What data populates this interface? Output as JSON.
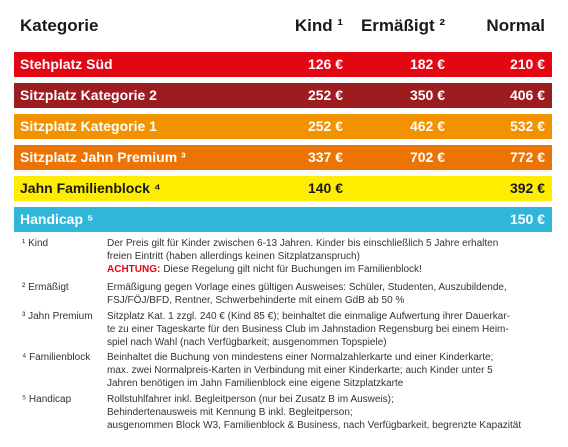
{
  "table": {
    "header": [
      "Kategorie",
      "Kind ¹",
      "Ermäßigt ²",
      "Normal"
    ],
    "rows": [
      {
        "cells": [
          "Stehplatz Süd",
          "126 €",
          "182 €",
          "210 €"
        ],
        "color": "#e30613",
        "text_color": "#ffffff"
      },
      {
        "cells": [
          "Sitzplatz Kategorie 2",
          "252 €",
          "350 €",
          "406 €"
        ],
        "color": "#9d1c20",
        "text_color": "#ffffff"
      },
      {
        "cells": [
          "Sitzplatz Kategorie 1",
          "252 €",
          "462 €",
          "532 €"
        ],
        "color": "#f39200",
        "text_color": "#ffffff"
      },
      {
        "cells": [
          "Sitzplatz Jahn Premium ³",
          "337 €",
          "702 €",
          "772 €"
        ],
        "color": "#ec7404",
        "text_color": "#ffffff"
      },
      {
        "cells": [
          "Jahn Familienblock ⁴",
          "140 €",
          null,
          "392 €"
        ],
        "color": "#ffed00",
        "text_color": "#1a1a1a"
      },
      {
        "cells": [
          "Handicap ⁵",
          null,
          null,
          "150 €"
        ],
        "color": "#2fb6d8",
        "text_color": "#ffffff"
      }
    ]
  },
  "footnotes": [
    {
      "label": "¹ Kind",
      "lines": [
        "Der Preis gilt für Kinder zwischen 6-13 Jahren. Kinder bis einschließlich 5 Jahre erhalten",
        "freien Eintritt (haben allerdings keinen Sitzplatzanspruch)"
      ],
      "warning": {
        "label": "ACHTUNG:",
        "text": "Diese Regelung gilt nicht für Buchungen im Familienblock!"
      }
    },
    {
      "label": "² Ermäßigt",
      "lines": [
        "Ermäßigung gegen Vorlage eines gültigen Ausweises: Schüler, Studenten, Auszubildende,",
        "FSJ/FÖJ/BFD, Rentner, Schwerbehinderte mit einem GdB ab 50 %"
      ]
    },
    {
      "label": "³ Jahn Premium",
      "lines": [
        "Sitzplatz Kat. 1 zzgl. 240 € (Kind 85 €); beinhaltet die einmalige Aufwertung ihrer Dauerkar-",
        "te zu einer Tageskarte für den Business Club im Jahnstadion Regensburg bei einem Heim-",
        "spiel nach Wahl (nach Verfügbarkeit; ausgenommen Topspiele)"
      ]
    },
    {
      "label": "⁴ Familienblock",
      "lines": [
        "Beinhaltet die Buchung von mindestens einer Normalzahlerkarte und einer Kinderkarte;",
        "max. zwei Normalpreis-Karten in Verbindung mit einer Kinderkarte; auch Kinder unter 5",
        "Jahren benötigen im Jahn Familienblock eine eigene Sitzplatzkarte"
      ]
    },
    {
      "label": "⁵ Handicap",
      "lines": [
        "Rollstuhlfahrer inkl. Begleitperson (nur bei Zusatz B im Ausweis);",
        "Behindertenausweis mit Kennung B inkl. Begleitperson;",
        "ausgenommen Block W3, Familienblock & Business, nach Verfügbarkeit, begrenzte Kapazität"
      ]
    }
  ]
}
